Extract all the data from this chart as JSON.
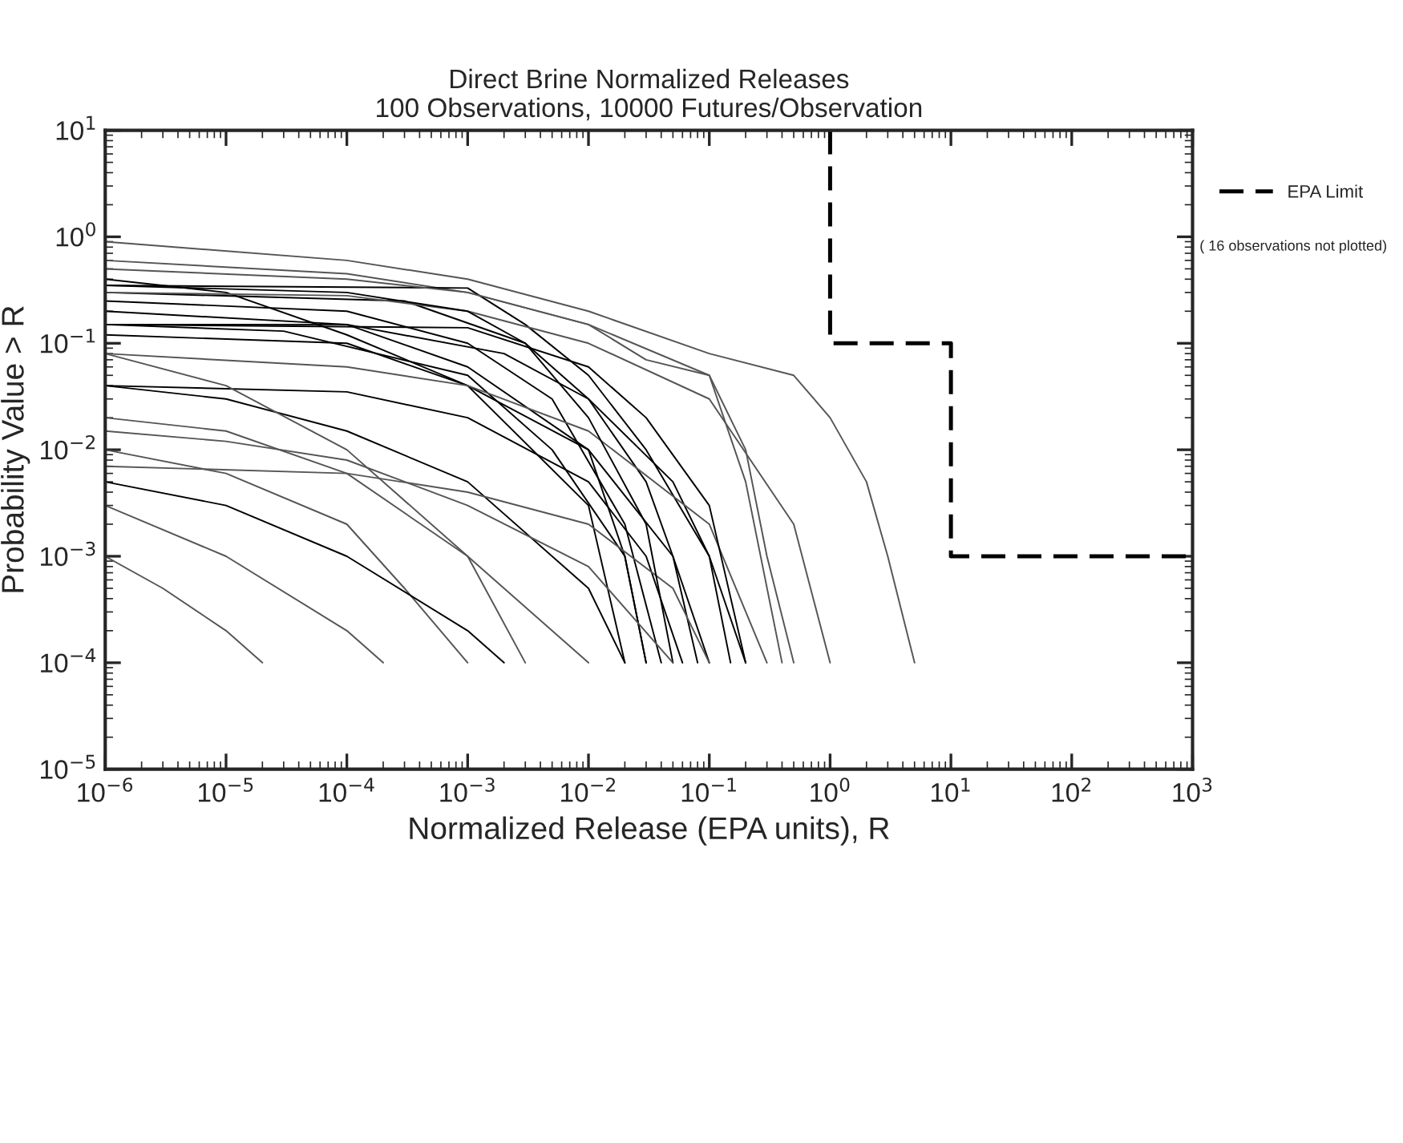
{
  "chart_data": {
    "type": "line",
    "title": "Direct Brine Normalized Releases\n100 Observations, 10000 Futures/Observation",
    "xlabel": "Normalized Release (EPA units), R",
    "ylabel": "Probability Value > R",
    "log": "xy",
    "xlim": [
      1e-06,
      1000
    ],
    "ylim": [
      1e-05,
      10
    ],
    "xticks": [
      {
        "value": 1e-06,
        "label": "10$^{−6}$"
      },
      {
        "value": 1e-05,
        "label": "10$^{−5}$"
      },
      {
        "value": 0.0001,
        "label": "10$^{−4}$"
      },
      {
        "value": 0.001,
        "label": "10$^{−3}$"
      },
      {
        "value": 0.01,
        "label": "10$^{−2}$"
      },
      {
        "value": 0.1,
        "label": "10$^{−1}$"
      },
      {
        "value": 1,
        "label": "10$^{0}$"
      },
      {
        "value": 10,
        "label": "10$^{1}$"
      },
      {
        "value": 100,
        "label": "10$^{2}$"
      },
      {
        "value": 1000,
        "label": "10$^{3}$"
      }
    ],
    "yticks": [
      {
        "value": 1e-05,
        "label": "10$^{−5}$"
      },
      {
        "value": 0.0001,
        "label": "10$^{−4}$"
      },
      {
        "value": 0.001,
        "label": "10$^{−3}$"
      },
      {
        "value": 0.01,
        "label": "10$^{−2}$"
      },
      {
        "value": 0.1,
        "label": "10$^{−1}$"
      },
      {
        "value": 1,
        "label": "10$^{0}$"
      },
      {
        "value": 10,
        "label": "10$^{1}$"
      }
    ],
    "grid": false,
    "legend": "right",
    "marker": "none",
    "line_style": "solid",
    "annotations": [
      "( 16 observations not plotted)"
    ],
    "series": [
      {
        "name": "EPA Limit",
        "color": "#000000",
        "line_style": "dashed",
        "x": [
          1,
          1,
          10,
          10,
          1000
        ],
        "values": [
          10,
          0.1,
          0.1,
          0.001,
          0.001
        ]
      },
      {
        "color": "#555555",
        "x": [
          1e-06,
          0.0001,
          0.001,
          0.01,
          0.1,
          0.5,
          1,
          2,
          3,
          5
        ],
        "values": [
          0.9,
          0.6,
          0.4,
          0.2,
          0.08,
          0.05,
          0.02,
          0.005,
          0.001,
          0.0001
        ]
      },
      {
        "color": "#555555",
        "x": [
          1e-06,
          0.0001,
          0.001,
          0.01,
          0.03,
          0.1,
          0.2,
          0.3,
          0.5
        ],
        "values": [
          0.6,
          0.45,
          0.3,
          0.15,
          0.07,
          0.05,
          0.01,
          0.001,
          0.0001
        ]
      },
      {
        "color": "#000000",
        "x": [
          1e-06,
          0.001,
          0.003,
          0.01,
          0.03,
          0.1,
          0.2
        ],
        "values": [
          0.35,
          0.33,
          0.15,
          0.05,
          0.01,
          0.001,
          0.0001
        ]
      },
      {
        "color": "#000000",
        "x": [
          1e-06,
          0.0003,
          0.003,
          0.01,
          0.03,
          0.05,
          0.08
        ],
        "values": [
          0.3,
          0.25,
          0.1,
          0.03,
          0.005,
          0.001,
          0.0001
        ]
      },
      {
        "color": "#000000",
        "x": [
          1e-06,
          0.0001,
          0.001,
          0.005,
          0.02,
          0.04
        ],
        "values": [
          0.25,
          0.2,
          0.1,
          0.03,
          0.002,
          0.0001
        ]
      },
      {
        "color": "#000000",
        "x": [
          1e-06,
          0.0001,
          0.001,
          0.01,
          0.02,
          0.03
        ],
        "values": [
          0.2,
          0.15,
          0.06,
          0.01,
          0.001,
          0.0001
        ]
      },
      {
        "color": "#000000",
        "x": [
          1e-06,
          0.0001,
          0.002,
          0.01,
          0.05,
          0.1,
          0.15
        ],
        "values": [
          0.15,
          0.15,
          0.08,
          0.03,
          0.005,
          0.001,
          0.0001
        ]
      },
      {
        "color": "#000000",
        "x": [
          1e-06,
          3e-05,
          0.001,
          0.005,
          0.02,
          0.03
        ],
        "values": [
          0.15,
          0.13,
          0.05,
          0.01,
          0.001,
          0.0001
        ]
      },
      {
        "color": "#000000",
        "x": [
          1e-06,
          1e-05,
          0.0001,
          0.001,
          0.01,
          0.02
        ],
        "values": [
          0.4,
          0.3,
          0.12,
          0.04,
          0.003,
          0.0001
        ]
      },
      {
        "color": "#000000",
        "x": [
          1e-06,
          0.0001,
          0.001,
          0.01,
          0.05,
          0.1
        ],
        "values": [
          0.12,
          0.1,
          0.04,
          0.01,
          0.001,
          0.0001
        ]
      },
      {
        "color": "#000000",
        "x": [
          1e-06,
          0.0001,
          0.001,
          0.01,
          0.03,
          0.06
        ],
        "values": [
          0.04,
          0.035,
          0.02,
          0.005,
          0.001,
          0.0001
        ]
      },
      {
        "color": "#000000",
        "x": [
          1e-06,
          1e-05,
          0.0001,
          0.001,
          0.01,
          0.02
        ],
        "values": [
          0.04,
          0.03,
          0.015,
          0.005,
          0.0005,
          0.0001
        ]
      },
      {
        "color": "#555555",
        "x": [
          1e-06,
          1e-05,
          0.0001,
          0.001,
          0.003
        ],
        "values": [
          0.08,
          0.04,
          0.01,
          0.001,
          0.0001
        ]
      },
      {
        "color": "#555555",
        "x": [
          1e-06,
          0.0001,
          0.001,
          0.01,
          0.1,
          0.3
        ],
        "values": [
          0.08,
          0.06,
          0.04,
          0.015,
          0.002,
          0.0001
        ]
      },
      {
        "color": "#555555",
        "x": [
          1e-06,
          0.0001,
          0.001,
          0.01,
          0.1,
          0.2,
          0.4
        ],
        "values": [
          0.5,
          0.4,
          0.3,
          0.15,
          0.05,
          0.005,
          0.0001
        ]
      },
      {
        "color": "#555555",
        "x": [
          1e-06,
          1e-05,
          0.0001,
          0.001,
          0.01
        ],
        "values": [
          0.02,
          0.015,
          0.006,
          0.001,
          0.0001
        ]
      },
      {
        "color": "#555555",
        "x": [
          1e-06,
          1e-05,
          0.0001,
          0.0003,
          0.001
        ],
        "values": [
          0.01,
          0.006,
          0.002,
          0.0005,
          0.0001
        ]
      },
      {
        "color": "#000000",
        "x": [
          1e-06,
          1e-05,
          0.0001,
          0.001,
          0.002
        ],
        "values": [
          0.005,
          0.003,
          0.001,
          0.0002,
          0.0001
        ]
      },
      {
        "color": "#555555",
        "x": [
          1e-06,
          1e-05,
          0.0001,
          0.0002
        ],
        "values": [
          0.003,
          0.001,
          0.0002,
          0.0001
        ]
      },
      {
        "color": "#555555",
        "x": [
          1e-06,
          3e-06,
          1e-05,
          2e-05
        ],
        "values": [
          0.001,
          0.0005,
          0.0002,
          0.0001
        ]
      },
      {
        "color": "#555555",
        "x": [
          1e-06,
          0.0001,
          0.001,
          0.01,
          0.05,
          0.1
        ],
        "values": [
          0.007,
          0.006,
          0.004,
          0.002,
          0.0005,
          0.0001
        ]
      },
      {
        "color": "#555555",
        "x": [
          1e-06,
          0.0001,
          0.001,
          0.01,
          0.1,
          0.5,
          1
        ],
        "values": [
          0.3,
          0.28,
          0.2,
          0.1,
          0.03,
          0.002,
          0.0001
        ]
      },
      {
        "color": "#000000",
        "x": [
          1e-06,
          0.0001,
          0.001,
          0.003,
          0.01,
          0.03,
          0.05
        ],
        "values": [
          0.35,
          0.3,
          0.2,
          0.1,
          0.02,
          0.002,
          0.0001
        ]
      },
      {
        "color": "#000000",
        "x": [
          1e-06,
          0.001,
          0.01,
          0.03,
          0.1,
          0.2
        ],
        "values": [
          0.15,
          0.14,
          0.06,
          0.02,
          0.003,
          0.0001
        ]
      },
      {
        "color": "#555555",
        "x": [
          1e-06,
          1e-05,
          0.0001,
          0.001,
          0.01,
          0.05
        ],
        "values": [
          0.015,
          0.012,
          0.008,
          0.003,
          0.0008,
          0.0001
        ]
      }
    ]
  }
}
